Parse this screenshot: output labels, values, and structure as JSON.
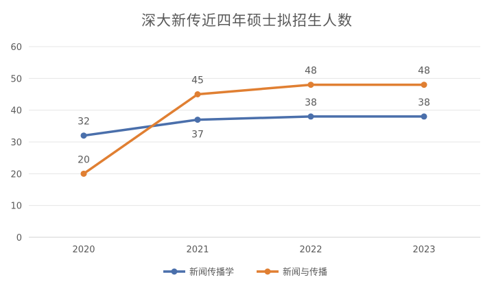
{
  "chart_data": {
    "type": "line",
    "title": "深大新传近四年硕士拟招生人数",
    "xlabel": "",
    "ylabel": "",
    "categories": [
      "2020",
      "2021",
      "2022",
      "2023"
    ],
    "ylim": [
      0,
      60
    ],
    "yticks": [
      0,
      10,
      20,
      30,
      40,
      50,
      60
    ],
    "grid": "horizontal",
    "legend_position": "bottom",
    "series": [
      {
        "name": "新闻传播学",
        "values": [
          32,
          37,
          38,
          38
        ],
        "color": "#4a6fab"
      },
      {
        "name": "新闻与传播",
        "values": [
          20,
          45,
          48,
          48
        ],
        "color": "#e07f32"
      }
    ]
  }
}
